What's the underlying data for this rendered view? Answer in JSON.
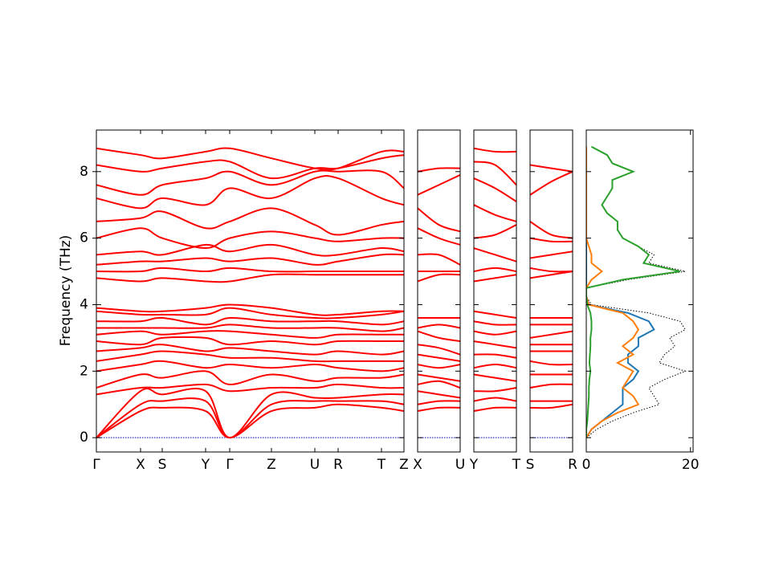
{
  "chart_data": [
    {
      "type": "bands",
      "ylabel": "Frequency (THz)",
      "color": "#ff0000",
      "x": [
        0,
        55,
        82,
        136,
        166,
        218,
        272,
        301,
        355,
        383
      ],
      "xlim": [
        0,
        383
      ],
      "xticks": [
        {
          "value": 0,
          "label": "Γ"
        },
        {
          "value": 55,
          "label": "X"
        },
        {
          "value": 82,
          "label": "S"
        },
        {
          "value": 136,
          "label": "Y"
        },
        {
          "value": 166,
          "label": "Γ"
        },
        {
          "value": 218,
          "label": "Z"
        },
        {
          "value": 272,
          "label": "U"
        },
        {
          "value": 301,
          "label": "R"
        },
        {
          "value": 355,
          "label": "T"
        },
        {
          "value": 383,
          "label": "Z"
        }
      ],
      "ylim": [
        -0.43,
        9.25
      ],
      "yticks": [
        0,
        2,
        4,
        6,
        8
      ],
      "hline": {
        "value": 0,
        "color": "#0000cc"
      },
      "series": [
        {
          "values": [
            0,
            0.8,
            0.9,
            0.8,
            0,
            0.8,
            0.9,
            1.0,
            0.9,
            0.8
          ]
        },
        {
          "values": [
            0,
            1.0,
            1.1,
            1.1,
            0,
            1.0,
            1.1,
            1.1,
            1.1,
            1.0
          ]
        },
        {
          "values": [
            0,
            1.4,
            1.3,
            1.4,
            0,
            1.3,
            1.2,
            1.2,
            1.3,
            1.3
          ]
        },
        {
          "values": [
            1.3,
            1.5,
            1.5,
            1.6,
            1.4,
            1.5,
            1.5,
            1.6,
            1.5,
            1.5
          ]
        },
        {
          "values": [
            1.5,
            1.9,
            1.8,
            2.0,
            1.6,
            1.9,
            1.7,
            1.8,
            1.8,
            1.9
          ]
        },
        {
          "values": [
            2.0,
            2.2,
            2.3,
            2.1,
            2.2,
            2.1,
            2.2,
            2.1,
            2.0,
            2.1
          ]
        },
        {
          "values": [
            2.3,
            2.5,
            2.6,
            2.5,
            2.4,
            2.4,
            2.3,
            2.3,
            2.3,
            2.3
          ]
        },
        {
          "values": [
            2.6,
            2.7,
            2.8,
            2.6,
            2.7,
            2.6,
            2.5,
            2.6,
            2.5,
            2.6
          ]
        },
        {
          "values": [
            2.9,
            2.8,
            3.0,
            3.0,
            2.8,
            2.9,
            2.8,
            2.9,
            2.9,
            2.9
          ]
        },
        {
          "values": [
            3.1,
            3.2,
            3.1,
            3.2,
            3.2,
            3.1,
            3.0,
            3.1,
            3.1,
            3.1
          ]
        },
        {
          "values": [
            3.3,
            3.3,
            3.3,
            3.3,
            3.4,
            3.3,
            3.3,
            3.3,
            3.2,
            3.3
          ]
        },
        {
          "values": [
            3.5,
            3.5,
            3.6,
            3.4,
            3.6,
            3.5,
            3.5,
            3.5,
            3.4,
            3.5
          ]
        },
        {
          "values": [
            3.8,
            3.7,
            3.7,
            3.7,
            3.9,
            3.7,
            3.6,
            3.6,
            3.7,
            3.8
          ]
        },
        {
          "values": [
            3.9,
            3.8,
            3.8,
            3.9,
            4.0,
            3.9,
            3.7,
            3.7,
            3.8,
            3.8
          ]
        },
        {
          "values": [
            4.8,
            4.7,
            4.8,
            4.7,
            4.7,
            4.9,
            4.9,
            4.9,
            4.9,
            4.9
          ]
        },
        {
          "values": [
            5.0,
            5.0,
            5.1,
            5.0,
            5.1,
            5.0,
            5.0,
            5.0,
            5.0,
            5.0
          ]
        },
        {
          "values": [
            5.2,
            5.3,
            5.3,
            5.4,
            5.3,
            5.4,
            5.2,
            5.3,
            5.5,
            5.5
          ]
        },
        {
          "values": [
            5.5,
            5.6,
            5.5,
            5.8,
            5.6,
            5.8,
            5.5,
            5.5,
            5.7,
            5.6
          ]
        },
        {
          "values": [
            6.0,
            6.3,
            6.0,
            5.7,
            6.0,
            6.2,
            6.0,
            5.9,
            6.0,
            6.0
          ]
        },
        {
          "values": [
            6.5,
            6.6,
            6.8,
            6.3,
            6.5,
            6.9,
            6.4,
            6.1,
            6.4,
            6.5
          ]
        },
        {
          "values": [
            7.2,
            6.9,
            7.2,
            7.0,
            7.5,
            7.2,
            7.8,
            7.8,
            7.2,
            7.0
          ]
        },
        {
          "values": [
            7.6,
            7.3,
            7.6,
            7.8,
            8.0,
            7.6,
            8.0,
            8.0,
            8.0,
            7.5
          ]
        },
        {
          "values": [
            8.2,
            8.0,
            8.1,
            8.3,
            8.3,
            7.8,
            8.1,
            8.1,
            8.4,
            8.5
          ]
        },
        {
          "values": [
            8.7,
            8.5,
            8.4,
            8.6,
            8.7,
            8.4,
            8.1,
            8.1,
            8.6,
            8.6
          ]
        }
      ]
    },
    {
      "type": "bands",
      "color": "#ff0000",
      "x": [
        0,
        26.5,
        53
      ],
      "xlim": [
        0,
        53
      ],
      "xticks": [
        {
          "value": 0,
          "label": "X"
        },
        {
          "value": 53,
          "label": "U"
        }
      ],
      "ylim": [
        -0.43,
        9.25
      ],
      "hline": {
        "value": 0,
        "color": "#0000cc"
      },
      "series": [
        {
          "values": [
            0.8,
            0.9,
            0.9
          ]
        },
        {
          "values": [
            1.0,
            1.1,
            1.1
          ]
        },
        {
          "values": [
            1.4,
            1.3,
            1.2
          ]
        },
        {
          "values": [
            1.6,
            1.7,
            1.5
          ]
        },
        {
          "values": [
            1.9,
            1.8,
            1.7
          ]
        },
        {
          "values": [
            2.2,
            2.1,
            2.2
          ]
        },
        {
          "values": [
            2.5,
            2.4,
            2.3
          ]
        },
        {
          "values": [
            2.8,
            2.7,
            2.5
          ]
        },
        {
          "values": [
            3.2,
            3.0,
            2.9
          ]
        },
        {
          "values": [
            3.3,
            3.4,
            3.3
          ]
        },
        {
          "values": [
            3.6,
            3.6,
            3.6
          ]
        },
        {
          "values": [
            4.7,
            4.9,
            4.9
          ]
        },
        {
          "values": [
            5.0,
            5.0,
            5.0
          ]
        },
        {
          "values": [
            5.5,
            5.5,
            5.2
          ]
        },
        {
          "values": [
            6.3,
            6.0,
            5.8
          ]
        },
        {
          "values": [
            6.9,
            6.4,
            6.2
          ]
        },
        {
          "values": [
            7.3,
            7.6,
            7.9
          ]
        },
        {
          "values": [
            8.0,
            8.1,
            8.1
          ]
        }
      ]
    },
    {
      "type": "bands",
      "color": "#ff0000",
      "x": [
        0,
        26.5,
        53
      ],
      "xlim": [
        0,
        53
      ],
      "xticks": [
        {
          "value": 0,
          "label": "Y"
        },
        {
          "value": 53,
          "label": "T"
        }
      ],
      "ylim": [
        -0.43,
        9.25
      ],
      "hline": {
        "value": 0,
        "color": "#0000cc"
      },
      "series": [
        {
          "values": [
            0.8,
            0.9,
            0.9
          ]
        },
        {
          "values": [
            1.1,
            1.2,
            1.1
          ]
        },
        {
          "values": [
            1.4,
            1.4,
            1.5
          ]
        },
        {
          "values": [
            1.9,
            1.8,
            1.7
          ]
        },
        {
          "values": [
            2.1,
            2.2,
            2.1
          ]
        },
        {
          "values": [
            2.5,
            2.5,
            2.4
          ]
        },
        {
          "values": [
            2.9,
            2.8,
            2.7
          ]
        },
        {
          "values": [
            3.2,
            3.1,
            3.2
          ]
        },
        {
          "values": [
            3.5,
            3.4,
            3.4
          ]
        },
        {
          "values": [
            3.8,
            3.7,
            3.6
          ]
        },
        {
          "values": [
            4.7,
            4.8,
            4.9
          ]
        },
        {
          "values": [
            5.0,
            5.1,
            5.0
          ]
        },
        {
          "values": [
            5.7,
            5.5,
            5.3
          ]
        },
        {
          "values": [
            6.0,
            6.1,
            6.4
          ]
        },
        {
          "values": [
            7.0,
            6.7,
            6.5
          ]
        },
        {
          "values": [
            7.8,
            7.5,
            7.1
          ]
        },
        {
          "values": [
            8.3,
            8.2,
            7.6
          ]
        },
        {
          "values": [
            8.7,
            8.6,
            8.6
          ]
        }
      ]
    },
    {
      "type": "bands",
      "color": "#ff0000",
      "x": [
        0,
        26.5,
        53
      ],
      "xlim": [
        0,
        53
      ],
      "xticks": [
        {
          "value": 0,
          "label": "S"
        },
        {
          "value": 53,
          "label": "R"
        }
      ],
      "ylim": [
        -0.43,
        9.25
      ],
      "hline": {
        "value": 0,
        "color": "#0000cc"
      },
      "series": [
        {
          "values": [
            0.9,
            0.9,
            1.0
          ]
        },
        {
          "values": [
            1.1,
            1.1,
            1.1
          ]
        },
        {
          "values": [
            1.5,
            1.6,
            1.6
          ]
        },
        {
          "values": [
            1.9,
            1.9,
            1.9
          ]
        },
        {
          "values": [
            2.3,
            2.2,
            2.2
          ]
        },
        {
          "values": [
            2.6,
            2.6,
            2.6
          ]
        },
        {
          "values": [
            2.8,
            2.8,
            2.8
          ]
        },
        {
          "values": [
            3.0,
            3.1,
            3.2
          ]
        },
        {
          "values": [
            3.4,
            3.4,
            3.4
          ]
        },
        {
          "values": [
            3.6,
            3.6,
            3.6
          ]
        },
        {
          "values": [
            4.8,
            4.9,
            5.0
          ]
        },
        {
          "values": [
            5.1,
            5.0,
            5.0
          ]
        },
        {
          "values": [
            5.4,
            5.5,
            5.6
          ]
        },
        {
          "values": [
            6.0,
            5.9,
            5.9
          ]
        },
        {
          "values": [
            6.5,
            6.1,
            6.0
          ]
        },
        {
          "values": [
            7.3,
            7.7,
            8.0
          ]
        },
        {
          "values": [
            8.2,
            8.1,
            8.0
          ]
        }
      ]
    },
    {
      "type": "line",
      "orientation": "horizontal",
      "x": [
        0,
        0.25,
        0.5,
        0.75,
        1.0,
        1.25,
        1.5,
        1.75,
        2.0,
        2.25,
        2.5,
        2.75,
        3.0,
        3.25,
        3.5,
        3.75,
        4.0,
        4.25,
        4.5,
        4.75,
        5.0,
        5.25,
        5.5,
        5.75,
        6.0,
        6.25,
        6.5,
        6.75,
        7.0,
        7.25,
        7.5,
        7.75,
        8.0,
        8.25,
        8.5,
        8.75
      ],
      "ylim": [
        -0.43,
        9.25
      ],
      "xlim": [
        0,
        20.5
      ],
      "xticks": [
        0,
        20
      ],
      "series": [
        {
          "color": "#000000",
          "dash": "dotted",
          "values": [
            0,
            2,
            5,
            9,
            14,
            13,
            12,
            15,
            19,
            14,
            15,
            17,
            16,
            19,
            18,
            12,
            1,
            0,
            0,
            8,
            19,
            12,
            13,
            10,
            7,
            6,
            6,
            4,
            3,
            4,
            5,
            5,
            9,
            5,
            4,
            1
          ]
        },
        {
          "color": "#1f77b4",
          "values": [
            0,
            1,
            3,
            5,
            7,
            7,
            7,
            9,
            10,
            8,
            8,
            10,
            10,
            13,
            12,
            8,
            0.5,
            0,
            0,
            0,
            0,
            0,
            0,
            0,
            0,
            0,
            0,
            0,
            0,
            0,
            0,
            0,
            0,
            0,
            0,
            0
          ]
        },
        {
          "color": "#ff7f0e",
          "values": [
            0,
            1,
            3,
            6,
            10,
            9,
            7,
            8,
            9,
            6,
            9,
            7,
            9,
            10,
            9,
            7,
            0.5,
            0,
            0,
            1,
            3,
            1,
            1,
            0.5,
            0,
            0,
            0,
            0,
            0,
            0,
            0,
            0,
            0,
            0,
            0,
            0
          ]
        },
        {
          "color": "#2ca02c",
          "values": [
            0,
            0,
            0.2,
            0.3,
            0.4,
            0.5,
            0.5,
            0.6,
            0.8,
            0.6,
            0.7,
            0.8,
            0.8,
            1,
            1,
            0.8,
            0.2,
            0,
            0,
            7,
            18,
            11,
            12,
            10,
            7,
            6,
            6,
            4,
            3,
            4,
            5,
            5,
            9,
            5,
            4,
            1
          ]
        }
      ]
    }
  ]
}
